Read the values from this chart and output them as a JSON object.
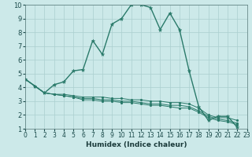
{
  "xlabel": "Humidex (Indice chaleur)",
  "xlim": [
    0,
    23
  ],
  "ylim": [
    1,
    10
  ],
  "xticks": [
    0,
    1,
    2,
    3,
    4,
    5,
    6,
    7,
    8,
    9,
    10,
    11,
    12,
    13,
    14,
    15,
    16,
    17,
    18,
    19,
    20,
    21,
    22,
    23
  ],
  "yticks": [
    1,
    2,
    3,
    4,
    5,
    6,
    7,
    8,
    9,
    10
  ],
  "bg_color": "#cce9e9",
  "grid_color": "#aacfcf",
  "line_color": "#2a7a6a",
  "lines": [
    {
      "x": [
        0,
        1,
        2,
        3,
        4,
        5,
        6,
        7,
        8,
        9,
        10,
        11,
        12,
        13,
        14,
        15,
        16,
        17,
        18,
        19,
        20,
        21,
        22
      ],
      "y": [
        4.6,
        4.1,
        3.6,
        4.2,
        4.4,
        5.2,
        5.3,
        7.4,
        6.4,
        8.6,
        9.0,
        10.0,
        10.0,
        9.8,
        8.2,
        9.4,
        8.2,
        5.2,
        2.6,
        1.6,
        1.9,
        1.9,
        1.1
      ]
    },
    {
      "x": [
        0,
        1,
        2,
        3,
        4,
        5,
        6,
        7,
        8,
        9,
        10,
        11,
        12,
        13,
        14,
        15,
        16,
        17,
        18,
        19,
        20,
        21,
        22
      ],
      "y": [
        4.6,
        4.1,
        3.6,
        3.5,
        3.5,
        3.4,
        3.3,
        3.3,
        3.3,
        3.2,
        3.2,
        3.1,
        3.1,
        3.0,
        3.0,
        2.9,
        2.9,
        2.8,
        2.5,
        2.0,
        1.8,
        1.8,
        1.6
      ]
    },
    {
      "x": [
        0,
        1,
        2,
        3,
        4,
        5,
        6,
        7,
        8,
        9,
        10,
        11,
        12,
        13,
        14,
        15,
        16,
        17,
        18,
        19,
        20,
        21,
        22
      ],
      "y": [
        4.6,
        4.1,
        3.6,
        3.5,
        3.4,
        3.3,
        3.2,
        3.2,
        3.1,
        3.1,
        3.0,
        3.0,
        2.9,
        2.8,
        2.8,
        2.7,
        2.7,
        2.6,
        2.3,
        1.9,
        1.7,
        1.6,
        1.4
      ]
    },
    {
      "x": [
        0,
        1,
        2,
        3,
        4,
        5,
        6,
        7,
        8,
        9,
        10,
        11,
        12,
        13,
        14,
        15,
        16,
        17,
        18,
        19,
        20,
        21,
        22
      ],
      "y": [
        4.6,
        4.1,
        3.6,
        3.5,
        3.4,
        3.3,
        3.1,
        3.1,
        3.0,
        3.0,
        2.9,
        2.9,
        2.8,
        2.7,
        2.7,
        2.6,
        2.5,
        2.5,
        2.2,
        1.8,
        1.6,
        1.5,
        1.3
      ]
    }
  ]
}
